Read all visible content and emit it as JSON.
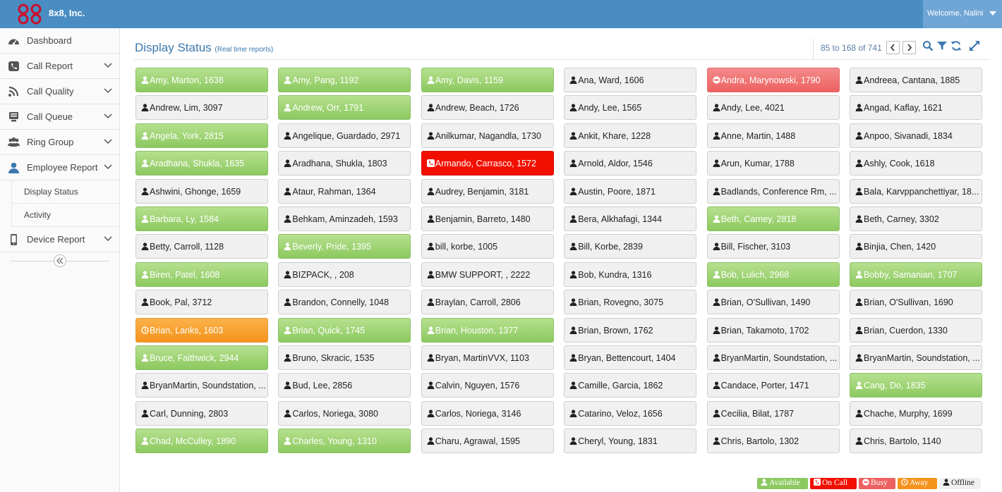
{
  "header": {
    "brand": "8x8, Inc.",
    "welcome": "Welcome, Nalini"
  },
  "sidebar": {
    "items": [
      {
        "label": "Dashboard",
        "icon": "dashboard-icon",
        "expandable": false
      },
      {
        "label": "Call Report",
        "icon": "phone-icon",
        "expandable": true
      },
      {
        "label": "Call Quality",
        "icon": "rss-icon",
        "expandable": true
      },
      {
        "label": "Call Queue",
        "icon": "queue-icon",
        "expandable": true
      },
      {
        "label": "Ring Group",
        "icon": "group-icon",
        "expandable": true
      },
      {
        "label": "Employee Report",
        "icon": "user-icon",
        "expandable": true
      },
      {
        "label": "Device Report",
        "icon": "mobile-icon",
        "expandable": true
      }
    ],
    "sub_items": [
      "Display Status",
      "Activity"
    ]
  },
  "main": {
    "title": "Display Status",
    "subtitle": "(Real time reports)",
    "pager": "85 to 168 of 741"
  },
  "colors": {
    "available": "#8cc95f",
    "on_call": "#f20f00",
    "busy": "#ee6161",
    "away": "#f5931c",
    "offline": "#f0f0f0",
    "header": "#4a8dc2"
  },
  "employees": [
    {
      "label": "Amy, Marton, 1638",
      "status": "available"
    },
    {
      "label": "Amy, Pang, 1192",
      "status": "available"
    },
    {
      "label": "Amy, Davis, 1159",
      "status": "available"
    },
    {
      "label": "Ana, Ward, 1606",
      "status": "offline"
    },
    {
      "label": "Andra, Marynowski, 1790",
      "status": "busy"
    },
    {
      "label": "Andreea, Cantana, 1885",
      "status": "offline"
    },
    {
      "label": "Andrew, Lim, 3097",
      "status": "offline"
    },
    {
      "label": "Andrew, Orr, 1791",
      "status": "available"
    },
    {
      "label": "Andrew, Beach, 1726",
      "status": "offline"
    },
    {
      "label": "Andy, Lee, 1565",
      "status": "offline"
    },
    {
      "label": "Andy, Lee, 4021",
      "status": "offline"
    },
    {
      "label": "Angad, Kaflay, 1621",
      "status": "offline"
    },
    {
      "label": "Angela, York, 2815",
      "status": "available"
    },
    {
      "label": "Angelique, Guardado, 2971",
      "status": "offline"
    },
    {
      "label": "Anilkumar, Nagandla, 1730",
      "status": "offline"
    },
    {
      "label": "Ankit, Khare, 1228",
      "status": "offline"
    },
    {
      "label": "Anne, Martin, 1488",
      "status": "offline"
    },
    {
      "label": "Anpoo, Sivanadi, 1834",
      "status": "offline"
    },
    {
      "label": "Aradhana, Shukla, 1635",
      "status": "available"
    },
    {
      "label": "Aradhana, Shukla, 1803",
      "status": "offline"
    },
    {
      "label": "Armando, Carrasco, 1572",
      "status": "oncall"
    },
    {
      "label": "Arnold, Aldor, 1546",
      "status": "offline"
    },
    {
      "label": "Arun, Kumar, 1788",
      "status": "offline"
    },
    {
      "label": "Ashly, Cook, 1618",
      "status": "offline"
    },
    {
      "label": "Ashwini, Ghonge, 1659",
      "status": "offline"
    },
    {
      "label": "Ataur, Rahman, 1364",
      "status": "offline"
    },
    {
      "label": "Audrey, Benjamin, 3181",
      "status": "offline"
    },
    {
      "label": "Austin, Poore, 1871",
      "status": "offline"
    },
    {
      "label": "Badlands, Conference Rm, ...",
      "status": "offline"
    },
    {
      "label": "Bala, Karvppanchettiyar, 18...",
      "status": "offline"
    },
    {
      "label": "Barbara, Ly, 1584",
      "status": "available"
    },
    {
      "label": "Behkam, Aminzadeh, 1593",
      "status": "offline"
    },
    {
      "label": "Benjamin, Barreto, 1480",
      "status": "offline"
    },
    {
      "label": "Bera, Alkhafagi, 1344",
      "status": "offline"
    },
    {
      "label": "Beth, Carney, 2818",
      "status": "available"
    },
    {
      "label": "Beth, Carney, 3302",
      "status": "offline"
    },
    {
      "label": "Betty, Carroll, 1128",
      "status": "offline"
    },
    {
      "label": "Beverly, Pride, 1395",
      "status": "available"
    },
    {
      "label": "bill, korbe, 1005",
      "status": "offline"
    },
    {
      "label": "Bill, Korbe, 2839",
      "status": "offline"
    },
    {
      "label": "Bill, Fischer, 3103",
      "status": "offline"
    },
    {
      "label": "Binjia, Chen, 1420",
      "status": "offline"
    },
    {
      "label": "Biren, Patel, 1608",
      "status": "available"
    },
    {
      "label": "BIZPACK, , 208",
      "status": "offline"
    },
    {
      "label": "BMW SUPPORT, , 2222",
      "status": "offline"
    },
    {
      "label": "Bob, Kundra, 1316",
      "status": "offline"
    },
    {
      "label": "Bob, Lulich, 2968",
      "status": "available"
    },
    {
      "label": "Bobby, Samanian, 1707",
      "status": "available"
    },
    {
      "label": "Book, Pal, 3712",
      "status": "offline"
    },
    {
      "label": "Brandon, Connelly, 1048",
      "status": "offline"
    },
    {
      "label": "Braylan, Carroll, 2806",
      "status": "offline"
    },
    {
      "label": "Brian, Rovegno, 3075",
      "status": "offline"
    },
    {
      "label": "Brian, O'Sullivan, 1490",
      "status": "offline"
    },
    {
      "label": "Brian, O'Sullivan, 1690",
      "status": "offline"
    },
    {
      "label": "Brian, Lanks, 1603",
      "status": "away"
    },
    {
      "label": "Brian, Quick, 1745",
      "status": "available"
    },
    {
      "label": "Brian, Houston, 1377",
      "status": "available"
    },
    {
      "label": "Brian, Brown, 1762",
      "status": "offline"
    },
    {
      "label": "Brian, Takamoto, 1702",
      "status": "offline"
    },
    {
      "label": "Brian, Cuerdon, 1330",
      "status": "offline"
    },
    {
      "label": "Bruce, Faithwick, 2944",
      "status": "available"
    },
    {
      "label": "Bruno, Skracic, 1535",
      "status": "offline"
    },
    {
      "label": "Bryan, MartinVVX, 1103",
      "status": "offline"
    },
    {
      "label": "Bryan, Bettencourt, 1404",
      "status": "offline"
    },
    {
      "label": "BryanMartin, Soundstation, ...",
      "status": "offline"
    },
    {
      "label": "BryanMartin, Soundstation, ...",
      "status": "offline"
    },
    {
      "label": "BryanMartin, Soundstation, ...",
      "status": "offline"
    },
    {
      "label": "Bud, Lee, 2856",
      "status": "offline"
    },
    {
      "label": "Calvin, Nguyen, 1576",
      "status": "offline"
    },
    {
      "label": "Camille, Garcia, 1862",
      "status": "offline"
    },
    {
      "label": "Candace, Porter, 1471",
      "status": "offline"
    },
    {
      "label": "Cang, Do, 1835",
      "status": "available"
    },
    {
      "label": "Carl, Dunning, 2803",
      "status": "offline"
    },
    {
      "label": "Carlos, Noriega, 3080",
      "status": "offline"
    },
    {
      "label": "Carlos, Noriega, 3146",
      "status": "offline"
    },
    {
      "label": "Catarino, Veloz, 1656",
      "status": "offline"
    },
    {
      "label": "Cecilia, Bilat, 1787",
      "status": "offline"
    },
    {
      "label": "Chache, Murphy, 1699",
      "status": "offline"
    },
    {
      "label": "Chad, McCulley, 1890",
      "status": "available"
    },
    {
      "label": "Charles, Young, 1310",
      "status": "available"
    },
    {
      "label": "Charu, Agrawal, 1595",
      "status": "offline"
    },
    {
      "label": "Cheryl, Young, 1831",
      "status": "offline"
    },
    {
      "label": "Chris, Bartolo, 1302",
      "status": "offline"
    },
    {
      "label": "Chris, Bartolo, 1140",
      "status": "offline"
    }
  ],
  "legend": [
    {
      "label": "Available",
      "status": "available"
    },
    {
      "label": "On Call",
      "status": "oncall"
    },
    {
      "label": "Busy",
      "status": "busy"
    },
    {
      "label": "Away",
      "status": "away"
    },
    {
      "label": "Offline",
      "status": "offline"
    }
  ]
}
